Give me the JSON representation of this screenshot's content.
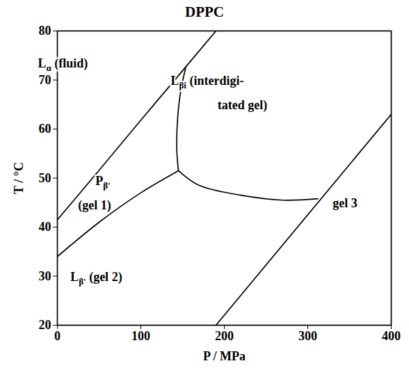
{
  "chart_data": {
    "type": "line",
    "title": "DPPC",
    "x_label": "P / MPa",
    "y_label": "T / °C",
    "xlim": [
      0,
      400
    ],
    "xticks": [
      0,
      100,
      200,
      300,
      400
    ],
    "ylim": [
      20,
      80
    ],
    "yticks": [
      20,
      30,
      40,
      50,
      60,
      70,
      80
    ],
    "grid": false,
    "boundaries": [
      {
        "color": "#000000",
        "x": [
          0,
          50,
          100,
          150,
          190
        ],
        "y": [
          41.5,
          51.6,
          61.8,
          71.9,
          80
        ]
      },
      {
        "color": "#000000",
        "x": [
          0,
          50,
          100,
          145
        ],
        "y": [
          34,
          41,
          47,
          51.5
        ]
      },
      {
        "color": "#000000",
        "x": [
          145,
          143,
          144,
          148,
          154
        ],
        "y": [
          51.5,
          56,
          62,
          68,
          72.7
        ]
      },
      {
        "color": "#000000",
        "x": [
          145,
          170,
          220,
          270,
          312
        ],
        "y": [
          51.5,
          48.5,
          46.5,
          45.5,
          45.8
        ]
      },
      {
        "color": "#000000",
        "x": [
          190,
          400
        ],
        "y": [
          20,
          63
        ]
      }
    ],
    "annotations": [
      {
        "x": 7,
        "y": 72.5,
        "parts": [
          {
            "text": "L"
          },
          {
            "text": "α",
            "sub": true
          },
          {
            "text": " (fluid)"
          }
        ]
      },
      {
        "x": 55,
        "y": 48.5,
        "parts": [
          {
            "text": "P"
          },
          {
            "text": "β'",
            "sub": true
          }
        ]
      },
      {
        "x": 45,
        "y": 43.5,
        "parts": [
          {
            "text": "(gel 1)"
          }
        ]
      },
      {
        "x": 47,
        "y": 29,
        "parts": [
          {
            "text": "L"
          },
          {
            "text": "β'",
            "sub": true
          },
          {
            "text": " (gel 2)"
          }
        ]
      },
      {
        "x": 180,
        "y": 69,
        "parts": [
          {
            "text": "L"
          },
          {
            "text": "βi",
            "sub": true
          },
          {
            "text": " (interdigi-"
          }
        ]
      },
      {
        "x": 222,
        "y": 64,
        "parts": [
          {
            "text": "tated gel)"
          }
        ]
      },
      {
        "x": 345,
        "y": 44,
        "parts": [
          {
            "text": "gel 3"
          }
        ]
      }
    ]
  }
}
